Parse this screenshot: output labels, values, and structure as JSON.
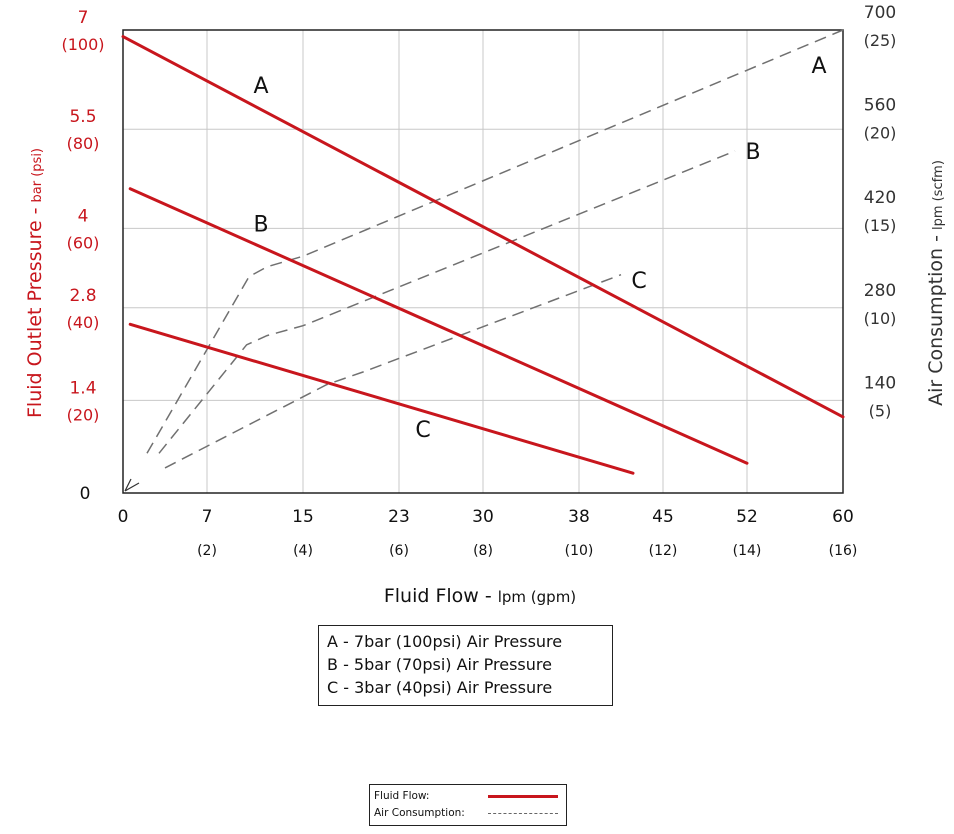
{
  "chart_data": {
    "type": "line",
    "xlabel": "Fluid Flow -",
    "xlabel_units": "lpm (gpm)",
    "ylabel_left": "Fluid Outlet Pressure -",
    "ylabel_left_units": "bar (psi)",
    "ylabel_right": "Air Consumption -",
    "ylabel_right_units": "lpm (scfm)",
    "xlim": [
      0,
      60
    ],
    "ylim_left": [
      0,
      7
    ],
    "ylim_right": [
      0,
      700
    ],
    "grid": true,
    "x_ticks": [
      {
        "value": 0,
        "label": "0",
        "sub": ""
      },
      {
        "value": 7,
        "label": "7",
        "sub": "(2)"
      },
      {
        "value": 15,
        "label": "15",
        "sub": "(4)"
      },
      {
        "value": 23,
        "label": "23",
        "sub": "(6)"
      },
      {
        "value": 30,
        "label": "30",
        "sub": "(8)"
      },
      {
        "value": 38,
        "label": "38",
        "sub": "(10)"
      },
      {
        "value": 45,
        "label": "45",
        "sub": "(12)"
      },
      {
        "value": 52,
        "label": "52",
        "sub": "(14)"
      },
      {
        "value": 60,
        "label": "60",
        "sub": "(16)"
      }
    ],
    "y_left_ticks": [
      {
        "value": 0,
        "label": "0",
        "sub": ""
      },
      {
        "value": 1.4,
        "label": "1.4",
        "sub": "(20)"
      },
      {
        "value": 2.8,
        "label": "2.8",
        "sub": "(40)"
      },
      {
        "value": 4,
        "label": "4",
        "sub": "(60)"
      },
      {
        "value": 5.5,
        "label": "5.5",
        "sub": "(80)"
      },
      {
        "value": 7,
        "label": "7",
        "sub": "(100)"
      }
    ],
    "y_right_ticks": [
      {
        "value": 140,
        "label": "140",
        "sub": "(5)"
      },
      {
        "value": 280,
        "label": "280",
        "sub": "(10)"
      },
      {
        "value": 420,
        "label": "420",
        "sub": "(15)"
      },
      {
        "value": 560,
        "label": "560",
        "sub": "(20)"
      },
      {
        "value": 700,
        "label": "700",
        "sub": "(25)"
      }
    ],
    "series": [
      {
        "name": "A",
        "kind": "fluid-flow",
        "axis": "left",
        "color": "#c8161d",
        "style": "solid",
        "points": [
          [
            0,
            6.9
          ],
          [
            60,
            1.15
          ]
        ]
      },
      {
        "name": "B",
        "kind": "fluid-flow",
        "axis": "left",
        "color": "#c8161d",
        "style": "solid",
        "points": [
          [
            0.6,
            4.6
          ],
          [
            52,
            0.45
          ]
        ]
      },
      {
        "name": "C",
        "kind": "fluid-flow",
        "axis": "left",
        "color": "#c8161d",
        "style": "solid",
        "points": [
          [
            0.6,
            2.55
          ],
          [
            42.5,
            0.3
          ]
        ]
      },
      {
        "name": "A",
        "kind": "air-consumption",
        "axis": "right",
        "color": "#707070",
        "style": "dashed",
        "points": [
          [
            2,
            60
          ],
          [
            10.5,
            327
          ],
          [
            12,
            342
          ],
          [
            15,
            358
          ],
          [
            62,
            700
          ]
        ]
      },
      {
        "name": "B",
        "kind": "air-consumption",
        "axis": "right",
        "color": "#707070",
        "style": "dashed",
        "points": [
          [
            3,
            60
          ],
          [
            10.3,
            224
          ],
          [
            12,
            238
          ],
          [
            15,
            253
          ],
          [
            51,
            517
          ]
        ]
      },
      {
        "name": "C",
        "kind": "air-consumption",
        "axis": "right",
        "color": "#707070",
        "style": "dashed",
        "points": [
          [
            3.5,
            38
          ],
          [
            17,
            164
          ],
          [
            20,
            183
          ],
          [
            41.5,
            330
          ]
        ]
      }
    ],
    "annotations": [
      {
        "text": "A",
        "x": 11.5,
        "y_left": 6.05
      },
      {
        "text": "B",
        "x": 11.5,
        "y_left": 3.95
      },
      {
        "text": "C",
        "x": 25,
        "y_left": 0.85
      },
      {
        "text": "A",
        "x": 58,
        "y_left": 6.35
      },
      {
        "text": "B",
        "x": 52.5,
        "y_left": 5.05
      },
      {
        "text": "C",
        "x": 43,
        "y_left": 3.1
      }
    ],
    "colors": {
      "fluid": "#c8161d",
      "air": "#707070",
      "axis_left_text": "#c8161d",
      "grid": "#c8c8c8"
    }
  },
  "legend": {
    "items": [
      "A - 7bar (100psi) Air Pressure",
      "B - 5bar (70psi) Air Pressure",
      "C - 3bar (40psi) Air Pressure"
    ]
  },
  "key": {
    "fluid_label": "Fluid Flow:",
    "air_label": "Air Consumption:"
  }
}
